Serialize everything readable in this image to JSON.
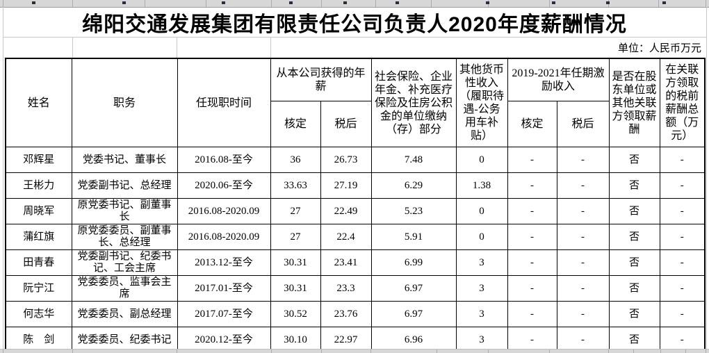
{
  "page": {
    "title": "绵阳交通发展集团有限责任公司负责人2020年度薪酬情况",
    "unit_note": "单位：人民币万元"
  },
  "table": {
    "headers": {
      "name": "姓名",
      "position": "职务",
      "tenure": "任现职时间",
      "company_salary_group": "从本公司获得的年薪",
      "salary_approved": "核定",
      "salary_after_tax": "税后",
      "social_insurance": "社会保险、企业年金、补充医疗保险及住房公积金的单位缴纳（存）部分",
      "other_cash_income": "其他货币性收入（履职待遇-公务用车补贴）",
      "term_incentive_group": "2019-2021年任期激励收入",
      "incentive_approved": "核定",
      "incentive_after_tax": "税后",
      "related_party_flag": "是否在股东单位或其他关联方领取薪酬",
      "related_party_amount": "在关联方领取的税前薪酬总额（万元）"
    },
    "rows": [
      [
        "邓辉星",
        "党委书记、董事长",
        "2016.08-至今",
        "36",
        "26.73",
        "7.48",
        "0",
        "-",
        "-",
        "否",
        "-"
      ],
      [
        "王彬力",
        "党委副书记、总经理",
        "2020.06-至今",
        "33.63",
        "27.19",
        "6.29",
        "1.38",
        "-",
        "-",
        "否",
        "-"
      ],
      [
        "周晓军",
        "原党委书记、副董事长",
        "2016.08-2020.09",
        "27",
        "22.49",
        "5.23",
        "0",
        "-",
        "-",
        "否",
        "-"
      ],
      [
        "蒲红旗",
        "原党委委员、副董事长、总经理",
        "2016.08-2020.09",
        "27",
        "22.4",
        "5.91",
        "0",
        "-",
        "-",
        "否",
        "-"
      ],
      [
        "田青春",
        "党委副书记、纪委书记、工会主席",
        "2013.12-至今",
        "30.31",
        "23.41",
        "6.99",
        "3",
        "-",
        "-",
        "否",
        "-"
      ],
      [
        "阮宁江",
        "党委委员、监事会主席",
        "2017.01-至今",
        "30.31",
        "23.3",
        "6.97",
        "3",
        "-",
        "-",
        "否",
        "-"
      ],
      [
        "何志华",
        "党委委员、副总经理",
        "2017.07-至今",
        "30.52",
        "23.76",
        "6.97",
        "3",
        "-",
        "-",
        "否",
        "-"
      ],
      [
        "陈　剑",
        "党委委员、纪委书记",
        "2020.12-至今",
        "30.10",
        "22.97",
        "6.96",
        "3",
        "-",
        "-",
        "否",
        "-"
      ]
    ]
  }
}
